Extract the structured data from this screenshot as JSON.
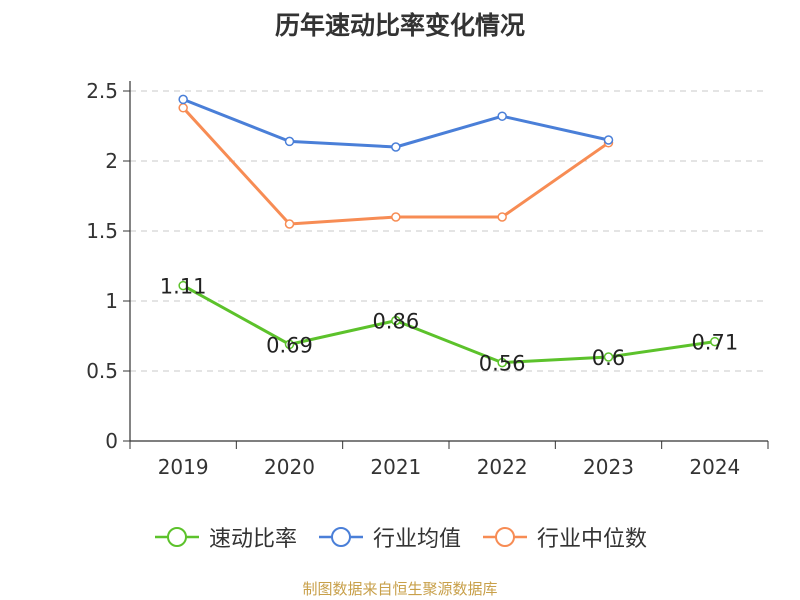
{
  "title": "历年速动比率变化情况",
  "source": "制图数据来自恒生聚源数据库",
  "chart_data": {
    "type": "line",
    "title": "历年速动比率变化情况",
    "categories": [
      "2019",
      "2020",
      "2021",
      "2022",
      "2023",
      "2024"
    ],
    "ylim": [
      0,
      2.5
    ],
    "yticks": [
      "0",
      "0.5",
      "1",
      "1.5",
      "2",
      "2.5"
    ],
    "grid": true,
    "legend_position": "bottom",
    "series": [
      {
        "name": "速动比率",
        "color": "#5cc22b",
        "values": [
          1.11,
          0.69,
          0.86,
          0.56,
          0.6,
          0.71
        ],
        "labels": [
          "1.11",
          "0.69",
          "0.86",
          "0.56",
          "0.6",
          "0.71"
        ]
      },
      {
        "name": "行业均值",
        "color": "#4a7fd8",
        "values": [
          2.44,
          2.14,
          2.1,
          2.32,
          2.15,
          null
        ]
      },
      {
        "name": "行业中位数",
        "color": "#f78c54",
        "values": [
          2.38,
          1.55,
          1.6,
          1.6,
          2.13,
          null
        ]
      }
    ]
  }
}
